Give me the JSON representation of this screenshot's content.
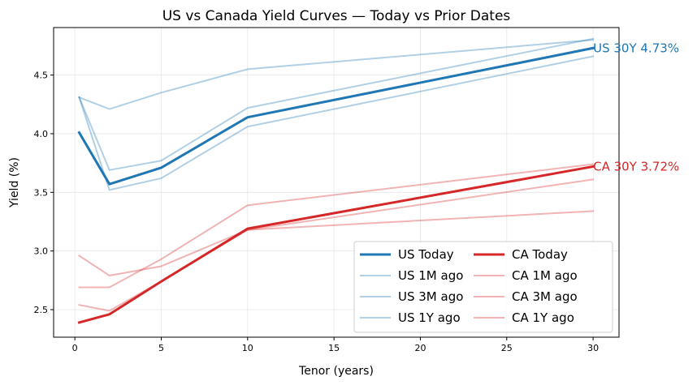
{
  "chart_data": {
    "type": "line",
    "title": "US vs Canada Yield Curves — Today vs Prior Dates",
    "xlabel": "Tenor (years)",
    "ylabel": "Yield (%)",
    "xlim": [
      -1.23,
      31.5
    ],
    "ylim": [
      2.265,
      4.905
    ],
    "xticks": [
      0,
      5,
      10,
      15,
      20,
      25,
      30
    ],
    "yticks": [
      2.5,
      3.0,
      3.5,
      4.0,
      4.5
    ],
    "ytick_labels": [
      "2.5",
      "3.0",
      "3.5",
      "4.0",
      "4.5"
    ],
    "x": [
      0.25,
      2,
      5,
      10,
      30
    ],
    "grid": true,
    "legend": {
      "placement": "lower-right",
      "columns": 2
    },
    "series": [
      {
        "name": "US Today",
        "values": [
          4.01,
          3.57,
          3.71,
          4.14,
          4.73
        ],
        "color": "#1f77b4",
        "opacity": 1.0,
        "width": 3.0
      },
      {
        "name": "US 1M ago",
        "values": [
          4.31,
          3.69,
          3.77,
          4.22,
          4.81
        ],
        "color": "#1f77b4",
        "opacity": 0.35,
        "width": 2.0
      },
      {
        "name": "US 3M ago",
        "values": [
          4.31,
          4.21,
          4.35,
          4.55,
          4.8
        ],
        "color": "#1f77b4",
        "opacity": 0.35,
        "width": 2.0
      },
      {
        "name": "US 1Y ago",
        "values": [
          4.31,
          3.52,
          3.62,
          4.06,
          4.66
        ],
        "color": "#1f77b4",
        "opacity": 0.35,
        "width": 2.0
      },
      {
        "name": "CA Today",
        "values": [
          2.39,
          2.46,
          2.74,
          3.19,
          3.72
        ],
        "color": "#d62728",
        "opacity": 1.0,
        "width": 3.0
      },
      {
        "name": "CA 1M ago",
        "values": [
          2.96,
          2.79,
          2.87,
          3.18,
          3.34
        ],
        "color": "#d62728",
        "opacity": 0.35,
        "width": 2.0
      },
      {
        "name": "CA 3M ago",
        "values": [
          2.69,
          2.69,
          2.93,
          3.39,
          3.74
        ],
        "color": "#d62728",
        "opacity": 0.35,
        "width": 2.0
      },
      {
        "name": "CA 1Y ago",
        "values": [
          2.54,
          2.49,
          2.74,
          3.18,
          3.61
        ],
        "color": "#d62728",
        "opacity": 0.35,
        "width": 2.0
      }
    ],
    "annotations": [
      {
        "text": "US 30Y 4.73%",
        "x": 30,
        "y": 4.73,
        "color": "#1f77b4"
      },
      {
        "text": "CA 30Y 3.72%",
        "x": 30,
        "y": 3.72,
        "color": "#d62728"
      }
    ]
  }
}
